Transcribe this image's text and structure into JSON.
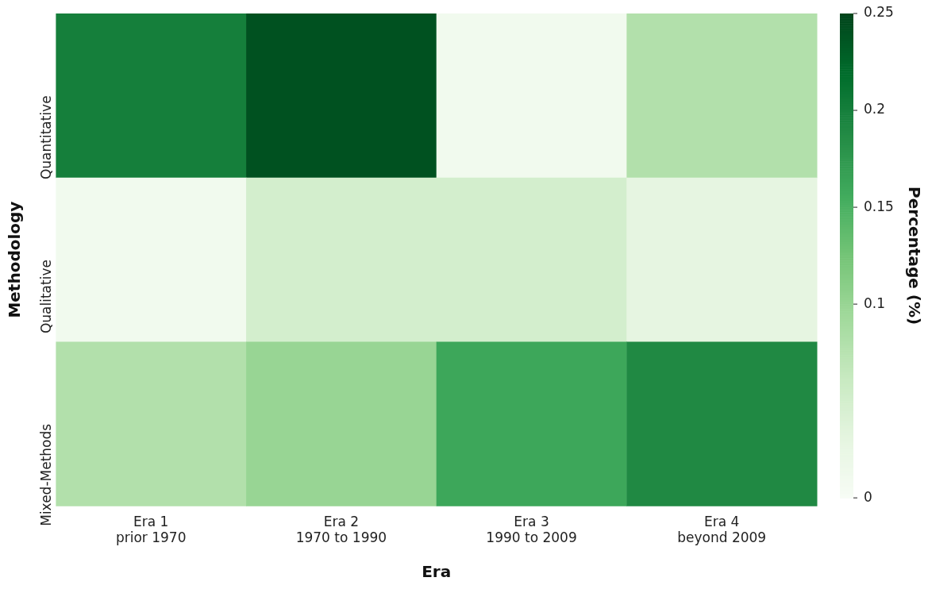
{
  "chart_data": {
    "type": "heatmap",
    "xlabel": "Era",
    "ylabel": "Methodology",
    "clabel": "Percentage (%)",
    "categories": [
      "Era 1\nprior 1970",
      "Era 2\n1970 to 1990",
      "Era 3\n1990 to 2009",
      "Era 4\nbeyond 2009"
    ],
    "y_categories": [
      "Quantitative",
      "Qualitative",
      "Mixed-Methods"
    ],
    "cells": [
      [
        0.2,
        0.24,
        0.01,
        0.08
      ],
      [
        0.01,
        0.05,
        0.05,
        0.03
      ],
      [
        0.08,
        0.1,
        0.16,
        0.19
      ]
    ],
    "clim": [
      0,
      0.25
    ],
    "cticks": [
      0,
      0.1,
      0.15,
      0.2,
      0.25
    ]
  }
}
